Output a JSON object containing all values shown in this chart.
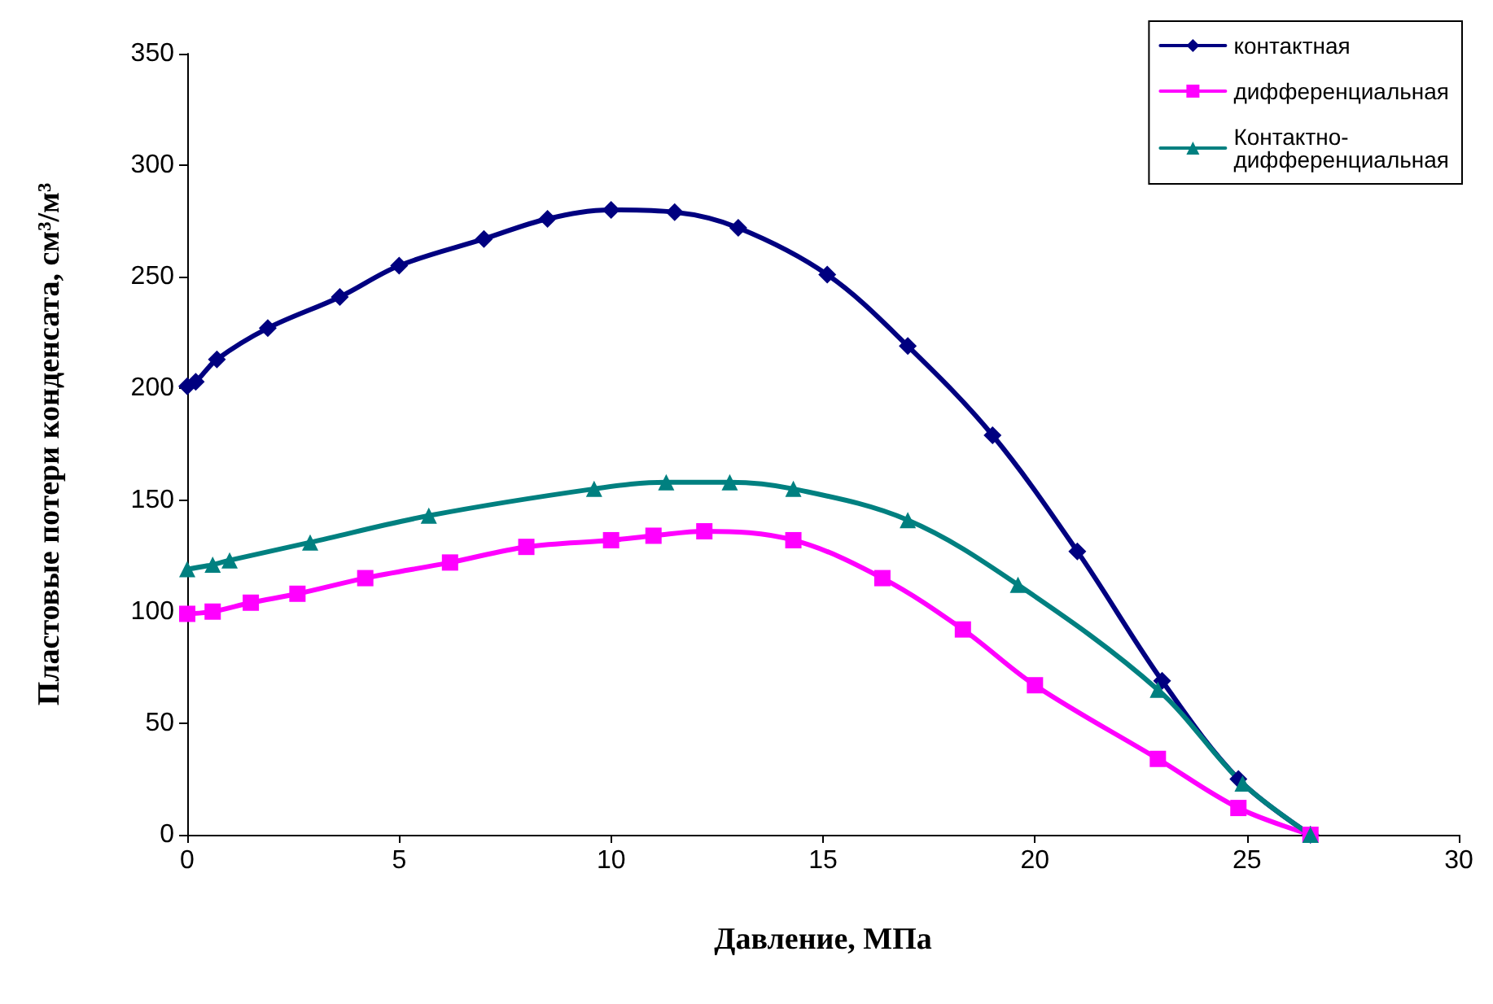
{
  "chart_data": {
    "type": "line",
    "xlabel": "Давление, МПа",
    "ylabel": "Пластовые потери конденсата, см³/м³",
    "xlim": [
      0,
      30
    ],
    "xticks": [
      0,
      5,
      10,
      15,
      20,
      25,
      30
    ],
    "ylim": [
      0,
      350
    ],
    "yticks": [
      0,
      50,
      100,
      150,
      200,
      250,
      300,
      350
    ],
    "grid": false,
    "legend": "top right",
    "line_style": "solid",
    "series": [
      {
        "name": "контактная",
        "color": "#000080",
        "marker": "diamond",
        "x": [
          0,
          0.2,
          0.7,
          1.9,
          3.6,
          5.0,
          7.0,
          8.5,
          10.0,
          11.5,
          13.0,
          15.1,
          17.0,
          19.0,
          21.0,
          23.0,
          24.8,
          26.5
        ],
        "values": [
          201,
          203,
          213,
          227,
          241,
          255,
          267,
          276,
          280,
          279,
          272,
          251,
          219,
          179,
          127,
          69,
          25,
          0
        ]
      },
      {
        "name": "дифференциальная",
        "color": "#ff00ff",
        "marker": "square",
        "x": [
          0,
          0.6,
          1.5,
          2.6,
          4.2,
          6.2,
          8.0,
          10.0,
          11.0,
          12.2,
          14.3,
          16.4,
          18.3,
          20.0,
          22.9,
          24.8,
          26.5
        ],
        "values": [
          99,
          100,
          104,
          108,
          115,
          122,
          129,
          132,
          134,
          136,
          132,
          115,
          92,
          67,
          34,
          12,
          0
        ]
      },
      {
        "name": "Контактно-\nдифференциальная",
        "color": "#008080",
        "marker": "triangle",
        "x": [
          0,
          0.6,
          1.0,
          2.9,
          5.7,
          9.6,
          11.3,
          12.8,
          14.3,
          17.0,
          19.6,
          22.9,
          24.9,
          26.5
        ],
        "values": [
          119,
          121,
          123,
          131,
          143,
          155,
          158,
          158,
          155,
          141,
          112,
          65,
          23,
          0
        ]
      }
    ]
  }
}
